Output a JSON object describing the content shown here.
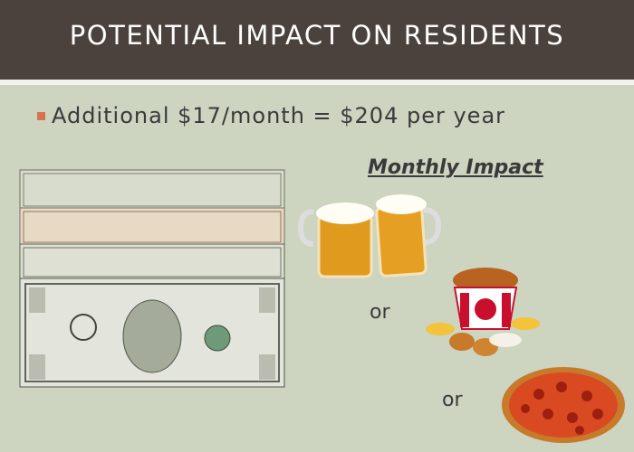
{
  "header": {
    "title": "POTENTIAL IMPACT ON RESIDENTS"
  },
  "body": {
    "bullet": "Additional $17/month = $204 per year",
    "subheading": "Monthly Impact",
    "separators": [
      "or",
      "or"
    ]
  }
}
